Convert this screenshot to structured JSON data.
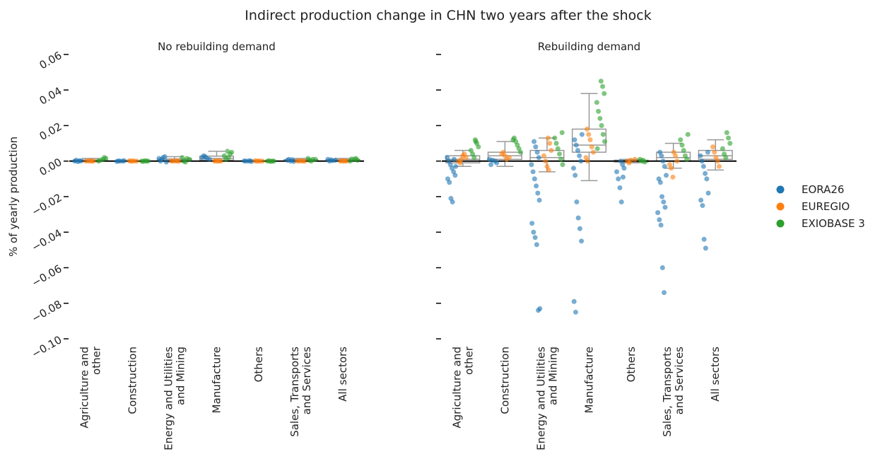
{
  "chart_data": {
    "type": "strip",
    "title": "Indirect production change in CHN two years after the shock",
    "ylabel": "% of yearly production",
    "categories": [
      "Agriculture and\nother",
      "Construction",
      "Energy and Utilities\nand Mining",
      "Manufacture",
      "Others",
      "Sales, Transports\nand Services",
      "All sectors"
    ],
    "ylim": [
      -0.1,
      0.06
    ],
    "yticks": [
      0.06,
      0.04,
      0.02,
      {
        "value": 0,
        "label": "0.00"
      },
      {
        "value": -0.02,
        "label": "−0.02"
      },
      {
        "value": -0.04,
        "label": "−0.04"
      },
      {
        "value": -0.06,
        "label": "−0.06"
      },
      {
        "value": -0.08,
        "label": "−0.08"
      },
      {
        "value": -0.1,
        "label": "−0.10"
      }
    ],
    "series": [
      {
        "name": "EORA26",
        "color": "#1f77b4"
      },
      {
        "name": "EUREGIO",
        "color": "#ff7f0e"
      },
      {
        "name": "EXIOBASE 3",
        "color": "#2ca02c"
      }
    ],
    "panels": [
      {
        "title": "No rebuilding demand",
        "points": [
          [
            [
              0,
              0.0005,
              -0.0003,
              0.0002,
              0.0001
            ],
            [
              0,
              0.0002,
              -0.0002,
              0.0001,
              0
            ],
            [
              0.001,
              0.002,
              0.0025,
              -0.0005,
              0.0015,
              0
            ],
            [
              0.001,
              0.002,
              0.003,
              0.0025,
              0.0015
            ],
            [
              0,
              0.0002,
              -0.0002,
              0.0001,
              0
            ],
            [
              0.0005,
              0.001,
              0,
              0.0008,
              -0.0002
            ],
            [
              0.0005,
              0.001,
              0,
              0.0007,
              0.0003
            ]
          ],
          [
            [
              0,
              0.0002,
              -0.0001,
              0.0001,
              0
            ],
            [
              0,
              0.0002,
              -0.0001,
              0.0001,
              0
            ],
            [
              0,
              0.0002,
              -0.0001,
              0.0001,
              0
            ],
            [
              0,
              0.0002,
              -0.0001,
              0.0001,
              0
            ],
            [
              0,
              0.0002,
              -0.0001,
              0.0001,
              0
            ],
            [
              0,
              0.0002,
              -0.0001,
              0.0001,
              0
            ],
            [
              0,
              0.0002,
              -0.0001,
              0.0001,
              0
            ]
          ],
          [
            [
              0.001,
              0.002,
              0.0015,
              0,
              0.0005
            ],
            [
              0,
              -0.0002,
              0.0002,
              0,
              0
            ],
            [
              0.001,
              0.002,
              0,
              -0.0005,
              0.0015
            ],
            [
              0.002,
              0.004,
              0.005,
              0.003,
              0.001,
              0.0055
            ],
            [
              0,
              0.0002,
              -0.0002,
              0,
              0
            ],
            [
              0.001,
              0.0015,
              0.0005,
              0,
              0.001
            ],
            [
              0.001,
              0.0015,
              0.0005,
              0,
              0.0012
            ]
          ]
        ],
        "boxes": [
          {
            "low": -0.0003,
            "q1": 0,
            "median": 0.0002,
            "q3": 0.0006,
            "high": 0.0015
          },
          {
            "low": -0.0002,
            "q1": 0,
            "median": 0,
            "q3": 0.0001,
            "high": 0.0002
          },
          {
            "low": -0.0005,
            "q1": 0,
            "median": 0.0005,
            "q3": 0.0012,
            "high": 0.0025
          },
          {
            "low": 0,
            "q1": 0.0005,
            "median": 0.0015,
            "q3": 0.0028,
            "high": 0.0055
          },
          {
            "low": -0.0002,
            "q1": 0,
            "median": 0,
            "q3": 0.0001,
            "high": 0.0002
          },
          {
            "low": -0.0002,
            "q1": 0,
            "median": 0.0003,
            "q3": 0.0008,
            "high": 0.0015
          },
          {
            "low": 0,
            "q1": 0,
            "median": 0.0003,
            "q3": 0.0008,
            "high": 0.0015
          }
        ]
      },
      {
        "title": "Rebuilding demand",
        "points": [
          [
            [
              0.002,
              0,
              -0.002,
              -0.004,
              -0.006,
              -0.008,
              -0.01,
              -0.012,
              -0.021,
              -0.023,
              0.001,
              -0.003
            ],
            [
              0,
              -0.001,
              0.001,
              -0.002,
              0.0005
            ],
            [
              0.011,
              0.008,
              0.005,
              0.002,
              -0.002,
              -0.006,
              -0.01,
              -0.014,
              -0.018,
              -0.022,
              -0.035,
              -0.04,
              -0.043,
              -0.047,
              -0.084,
              -0.083
            ],
            [
              0.015,
              0.012,
              0.009,
              0.006,
              0.003,
              0,
              -0.004,
              -0.008,
              -0.023,
              -0.032,
              -0.038,
              -0.045,
              -0.079,
              -0.085
            ],
            [
              0,
              -0.002,
              -0.004,
              -0.006,
              -0.01,
              -0.015,
              -0.023,
              -0.009
            ],
            [
              0.005,
              0.003,
              0,
              -0.003,
              -0.008,
              -0.01,
              -0.012,
              -0.02,
              -0.023,
              -0.026,
              -0.029,
              -0.033,
              -0.036,
              -0.06,
              -0.074
            ],
            [
              0.005,
              0.003,
              0,
              -0.003,
              -0.007,
              -0.01,
              -0.018,
              -0.022,
              -0.025,
              -0.044,
              -0.049
            ]
          ],
          [
            [
              0.001,
              0.003,
              0.004,
              0.002,
              0,
              -0.001
            ],
            [
              0.002,
              0.004,
              0.005,
              0.003,
              0.001
            ],
            [
              0.013,
              0.01,
              0.006,
              0.003,
              0,
              -0.003,
              -0.005
            ],
            [
              0.018,
              0.015,
              0.012,
              0.008,
              0.005,
              0.002,
              0
            ],
            [
              0.001,
              0,
              -0.001,
              0.0005
            ],
            [
              0.005,
              0.003,
              0,
              -0.002,
              -0.004,
              -0.009
            ],
            [
              0.008,
              0.005,
              0.002,
              0,
              -0.003
            ]
          ],
          [
            [
              0.012,
              0.01,
              0.008,
              0.006,
              0.004,
              0.002,
              0.011
            ],
            [
              0.013,
              0.011,
              0.009,
              0.007,
              0.005,
              0.012
            ],
            [
              0.016,
              0.013,
              0.01,
              0.007,
              0.004,
              0.001,
              -0.002
            ],
            [
              0.045,
              0.042,
              0.038,
              0.033,
              0.028,
              0.024,
              0.02,
              0.015,
              0.011,
              0.007
            ],
            [
              0.001,
              0,
              0.0005,
              -0.0005
            ],
            [
              0.015,
              0.012,
              0.009,
              0.006,
              0.003,
              0.001
            ],
            [
              0.016,
              0.013,
              0.01,
              0.007,
              0.004,
              0.002
            ]
          ]
        ],
        "boxes": [
          {
            "low": -0.003,
            "q1": -0.001,
            "median": 0.001,
            "q3": 0.003,
            "high": 0.006
          },
          {
            "low": -0.003,
            "q1": 0.001,
            "median": 0.003,
            "q3": 0.005,
            "high": 0.011
          },
          {
            "low": -0.006,
            "q1": 0,
            "median": 0.002,
            "q3": 0.006,
            "high": 0.013
          },
          {
            "low": -0.011,
            "q1": 0.005,
            "median": 0.009,
            "q3": 0.018,
            "high": 0.038
          },
          {
            "low": -0.001,
            "q1": -0.0005,
            "median": 0,
            "q3": 0.0005,
            "high": 0.001
          },
          {
            "low": -0.004,
            "q1": 0,
            "median": 0.002,
            "q3": 0.005,
            "high": 0.01
          },
          {
            "low": -0.005,
            "q1": 0.001,
            "median": 0.003,
            "q3": 0.006,
            "high": 0.012
          }
        ]
      }
    ]
  }
}
